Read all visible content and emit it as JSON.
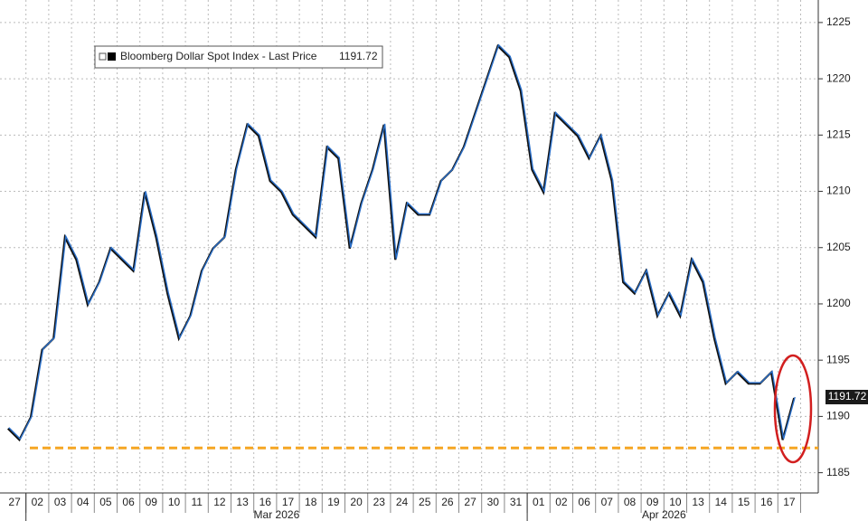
{
  "chart_data": {
    "type": "line",
    "categories": [
      "27",
      null,
      "02",
      null,
      "03",
      null,
      "04",
      null,
      "05",
      null,
      "06",
      null,
      "09",
      null,
      "10",
      null,
      "11",
      null,
      "12",
      null,
      "13",
      null,
      "16",
      null,
      "17",
      null,
      "18",
      null,
      "19",
      null,
      "20",
      null,
      "23",
      null,
      "24",
      null,
      "25",
      null,
      "26",
      null,
      "27",
      null,
      "30",
      null,
      "31",
      null,
      "01",
      null,
      "02",
      null,
      "06",
      null,
      "07",
      null,
      "08",
      null,
      "09",
      null,
      "10",
      null,
      "13",
      null,
      "14",
      null,
      "15",
      null,
      "16",
      null,
      "17",
      null
    ],
    "month_labels": [
      "Mar 2026",
      "Apr 2026"
    ],
    "series": [
      {
        "name": "Bloomberg Dollar Spot Index - Last Price",
        "color": "#2a6fc9",
        "values": [
          1189,
          1188,
          1190,
          1196,
          1197,
          1206,
          1204,
          1200,
          1202,
          1205,
          1204,
          1203,
          1210,
          1206,
          1201,
          1197,
          1199,
          1203,
          1205,
          1206,
          1212,
          1216,
          1215,
          1211,
          1210,
          1208,
          1207,
          1206,
          1214,
          1213,
          1205,
          1209,
          1212,
          1216,
          1204,
          1209,
          1208,
          1208,
          1211,
          1212,
          1214,
          1217,
          1220,
          1223,
          1222,
          1219,
          1212,
          1210,
          1217,
          1216,
          1215,
          1213,
          1215,
          1211,
          1202,
          1201,
          1203,
          1199,
          1201,
          1199,
          1204,
          1202,
          1197,
          1193,
          1194,
          1193,
          1193,
          1194,
          1188,
          1191.72
        ]
      }
    ],
    "ylim": [
      1183.2,
      1227
    ],
    "yticks": [
      1185,
      1190,
      1195,
      1200,
      1205,
      1210,
      1215,
      1220,
      1225
    ],
    "grid": true,
    "legend": "top-left",
    "reference_line": {
      "value": 1187.2,
      "color": "#f5a623"
    }
  }
}
